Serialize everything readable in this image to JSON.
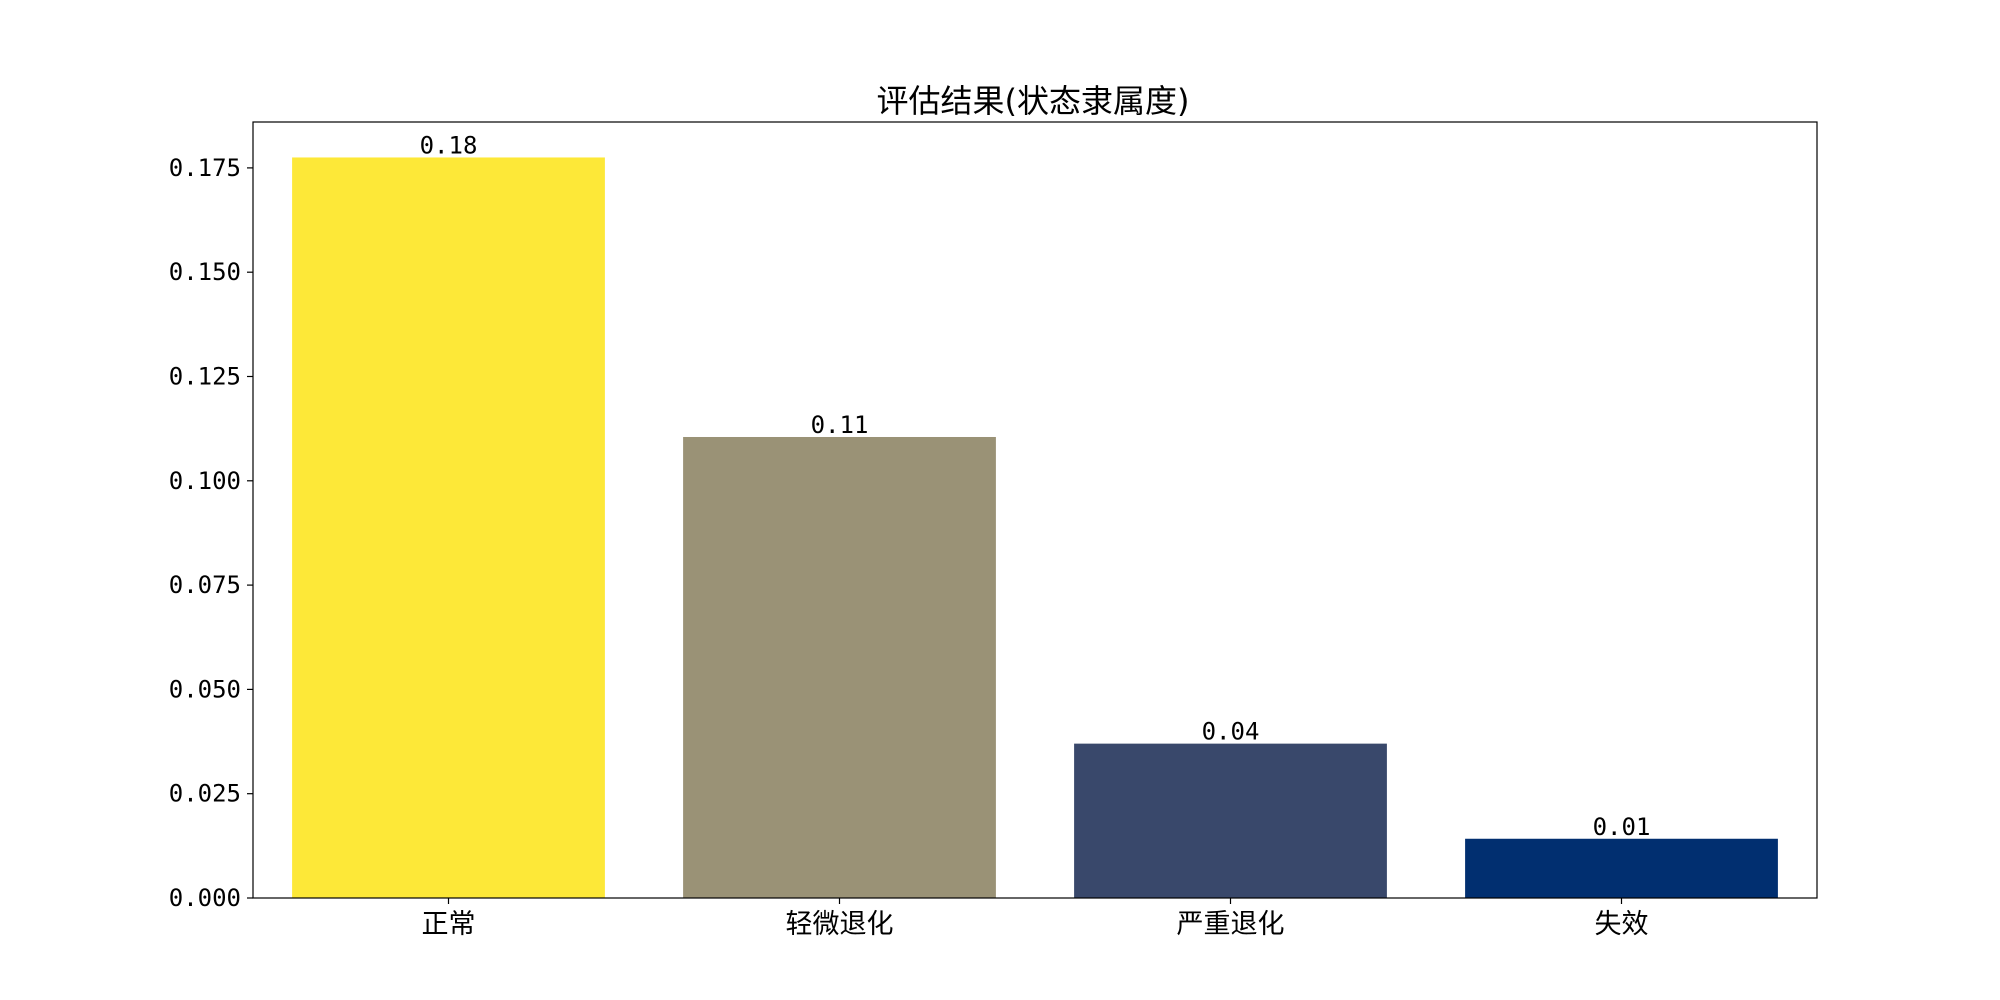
{
  "chart_data": {
    "type": "bar",
    "title": "评估结果(状态隶属度)",
    "xlabel": "",
    "ylabel": "",
    "categories": [
      "正常",
      "轻微退化",
      "严重退化",
      "失效"
    ],
    "values": [
      0.1775,
      0.1105,
      0.037,
      0.0142
    ],
    "data_labels": [
      "0.18",
      "0.11",
      "0.04",
      "0.01"
    ],
    "colors": [
      "#fde838",
      "#9a9276",
      "#39486b",
      "#012f70"
    ],
    "ylim": [
      0,
      0.186
    ],
    "yticks": [
      0.0,
      0.025,
      0.05,
      0.075,
      0.1,
      0.125,
      0.15,
      0.175
    ],
    "ytick_labels": [
      "0.000",
      "0.025",
      "0.050",
      "0.075",
      "0.100",
      "0.125",
      "0.150",
      "0.175"
    ],
    "grid": false,
    "legend": "none"
  }
}
